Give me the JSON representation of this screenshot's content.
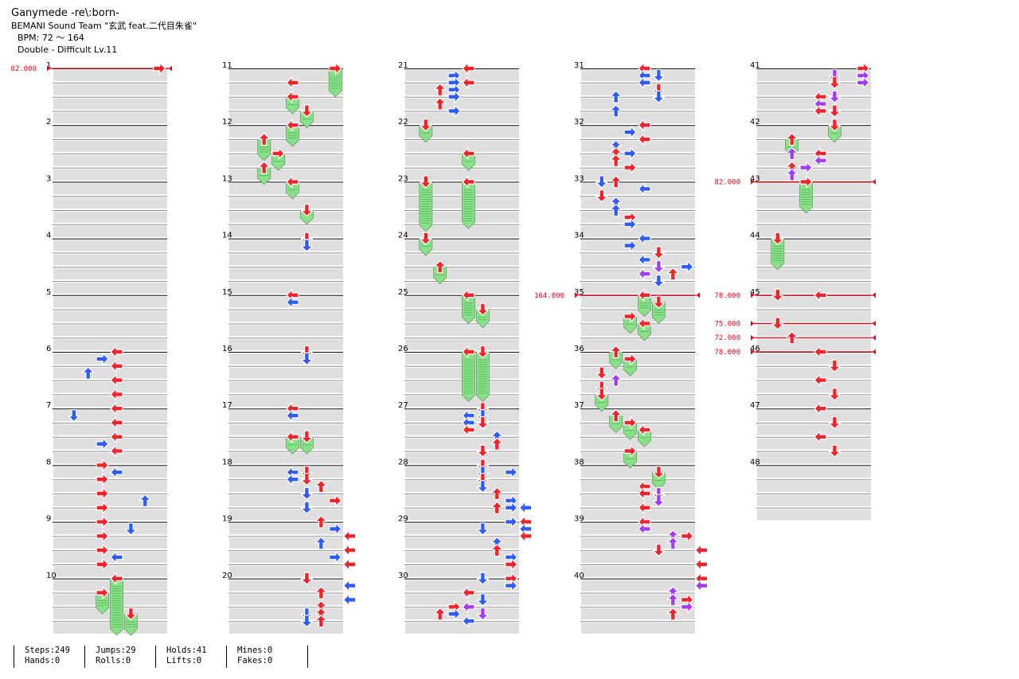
{
  "header": {
    "song_title": "Ganymede -re\\:born-",
    "artist": "BEMANI Sound Team \"玄武 feat.二代目朱雀\"",
    "bpm": "BPM: 72 ～ 164",
    "difficulty": "Double - Difficult  Lv.11"
  },
  "stats": [
    [
      "Steps:249",
      "Hands:0"
    ],
    [
      "Jumps:29",
      "Rolls:0"
    ],
    [
      "Holds:41",
      "Lifts:0"
    ],
    [
      "Mines:0",
      "Fakes:0"
    ]
  ],
  "colors": {
    "red_arrow": "#f0242c",
    "blue_arrow": "#2f5cf5",
    "purple_arrow": "#a13cf0",
    "hold_body": "#88e088",
    "bpm_line": "#e8001a",
    "row_band": "#dedede"
  },
  "measures": [
    "1",
    "2",
    "3",
    "4",
    "5",
    "6",
    "7",
    "8",
    "9",
    "10",
    "11",
    "12",
    "13",
    "14",
    "15",
    "16",
    "17",
    "18",
    "19",
    "20",
    "21",
    "22",
    "23",
    "24",
    "25",
    "26",
    "27",
    "28",
    "29",
    "30",
    "31",
    "32",
    "33",
    "34",
    "35",
    "36",
    "37",
    "38",
    "39",
    "40",
    "41",
    "42",
    "43",
    "44",
    "45",
    "46",
    "47",
    "48"
  ],
  "bpm_changes": [
    {
      "measure": 1,
      "beat": 0,
      "label": "82.000"
    },
    {
      "measure": 35,
      "beat": 0,
      "label": "164.000"
    },
    {
      "measure": 43,
      "beat": 0,
      "label": "82.000"
    },
    {
      "measure": 45,
      "beat": 0,
      "label": "78.000"
    },
    {
      "measure": 45,
      "beat": 2,
      "label": "75.000"
    },
    {
      "measure": 45,
      "beat": 3,
      "label": "72.000"
    },
    {
      "measure": 46,
      "beat": 0,
      "label": "78.000"
    }
  ],
  "notes": [
    {
      "m": 1,
      "b": 0,
      "lane": 7,
      "c": "r"
    },
    {
      "m": 6,
      "b": 0,
      "lane": 4,
      "c": "r"
    },
    {
      "m": 6,
      "b": 0.5,
      "lane": 3,
      "c": "b"
    },
    {
      "m": 6,
      "b": 1,
      "lane": 4,
      "c": "r"
    },
    {
      "m": 6,
      "b": 1.5,
      "lane": 2,
      "c": "b"
    },
    {
      "m": 6,
      "b": 2,
      "lane": 4,
      "c": "r"
    },
    {
      "m": 6,
      "b": 3,
      "lane": 4,
      "c": "r"
    },
    {
      "m": 7,
      "b": 0,
      "lane": 4,
      "c": "r"
    },
    {
      "m": 7,
      "b": 0.5,
      "lane": 1,
      "c": "b"
    },
    {
      "m": 7,
      "b": 1,
      "lane": 4,
      "c": "r"
    },
    {
      "m": 7,
      "b": 2,
      "lane": 4,
      "c": "r"
    },
    {
      "m": 7,
      "b": 2.5,
      "lane": 3,
      "c": "b"
    },
    {
      "m": 7,
      "b": 3,
      "lane": 4,
      "c": "r"
    },
    {
      "m": 8,
      "b": 0,
      "lane": 3,
      "c": "r"
    },
    {
      "m": 8,
      "b": 0.5,
      "lane": 4,
      "c": "b"
    },
    {
      "m": 8,
      "b": 1,
      "lane": 3,
      "c": "r"
    },
    {
      "m": 8,
      "b": 2,
      "lane": 3,
      "c": "r"
    },
    {
      "m": 8,
      "b": 2.5,
      "lane": 6,
      "c": "b"
    },
    {
      "m": 8,
      "b": 3,
      "lane": 3,
      "c": "r"
    },
    {
      "m": 9,
      "b": 0,
      "lane": 3,
      "c": "r"
    },
    {
      "m": 9,
      "b": 0.5,
      "lane": 5,
      "c": "b"
    },
    {
      "m": 9,
      "b": 1,
      "lane": 3,
      "c": "r"
    },
    {
      "m": 9,
      "b": 2,
      "lane": 3,
      "c": "r"
    },
    {
      "m": 9,
      "b": 2.5,
      "lane": 4,
      "c": "b"
    },
    {
      "m": 9,
      "b": 3,
      "lane": 3,
      "c": "r"
    },
    {
      "m": 10,
      "b": 0,
      "lane": 4,
      "c": "r",
      "hold": 4
    },
    {
      "m": 10,
      "b": 1,
      "lane": 3,
      "c": "r",
      "hold": 1.5
    },
    {
      "m": 10,
      "b": 2.5,
      "lane": 5,
      "c": "r",
      "hold": 1.5
    },
    {
      "m": 11,
      "b": 0,
      "lane": 7,
      "c": "r",
      "hold": 2
    },
    {
      "m": 11,
      "b": 1,
      "lane": 4,
      "c": "r"
    },
    {
      "m": 11,
      "b": 2,
      "lane": 4,
      "c": "r",
      "hold": 1.2
    },
    {
      "m": 11,
      "b": 3,
      "lane": 5,
      "c": "r",
      "hold": 1.2
    },
    {
      "m": 12,
      "b": 0,
      "lane": 4,
      "c": "r",
      "hold": 1.5
    },
    {
      "m": 12,
      "b": 1,
      "lane": 2,
      "c": "r",
      "hold": 1.5
    },
    {
      "m": 12,
      "b": 2,
      "lane": 3,
      "c": "r",
      "hold": 1.2
    },
    {
      "m": 12,
      "b": 3,
      "lane": 2,
      "c": "r",
      "hold": 1.2
    },
    {
      "m": 13,
      "b": 0,
      "lane": 4,
      "c": "r",
      "hold": 1.2
    },
    {
      "m": 13,
      "b": 2,
      "lane": 5,
      "c": "r",
      "hold": 1
    },
    {
      "m": 14,
      "b": 0,
      "lane": 5,
      "c": "r"
    },
    {
      "m": 14,
      "b": 0.5,
      "lane": 5,
      "c": "b"
    },
    {
      "m": 15,
      "b": 0,
      "lane": 4,
      "c": "r"
    },
    {
      "m": 15,
      "b": 0.5,
      "lane": 4,
      "c": "b"
    },
    {
      "m": 16,
      "b": 0,
      "lane": 5,
      "c": "r"
    },
    {
      "m": 16,
      "b": 0.5,
      "lane": 5,
      "c": "b"
    },
    {
      "m": 17,
      "b": 0,
      "lane": 4,
      "c": "r"
    },
    {
      "m": 17,
      "b": 0.5,
      "lane": 4,
      "c": "b"
    },
    {
      "m": 17,
      "b": 2,
      "lane": 4,
      "c": "r",
      "hold": 1.2
    },
    {
      "m": 17,
      "b": 2,
      "lane": 5,
      "c": "r",
      "hold": 1.2
    },
    {
      "m": 18,
      "b": 0.5,
      "lane": 4,
      "c": "b"
    },
    {
      "m": 18,
      "b": 0.5,
      "lane": 5,
      "c": "r"
    },
    {
      "m": 18,
      "b": 1,
      "lane": 4,
      "c": "b"
    },
    {
      "m": 18,
      "b": 1,
      "lane": 5,
      "c": "r"
    },
    {
      "m": 18,
      "b": 1.5,
      "lane": 6,
      "c": "r"
    },
    {
      "m": 18,
      "b": 2,
      "lane": 5,
      "c": "b"
    },
    {
      "m": 18,
      "b": 2.5,
      "lane": 7,
      "c": "r"
    },
    {
      "m": 18,
      "b": 3,
      "lane": 5,
      "c": "b"
    },
    {
      "m": 19,
      "b": 0,
      "lane": 6,
      "c": "r"
    },
    {
      "m": 19,
      "b": 0.5,
      "lane": 7,
      "c": "b"
    },
    {
      "m": 19,
      "b": 1,
      "lane": 8,
      "c": "r"
    },
    {
      "m": 19,
      "b": 1.5,
      "lane": 6,
      "c": "b"
    },
    {
      "m": 19,
      "b": 2,
      "lane": 8,
      "c": "r"
    },
    {
      "m": 19,
      "b": 2.5,
      "lane": 7,
      "c": "b"
    },
    {
      "m": 19,
      "b": 3,
      "lane": 8,
      "c": "r"
    },
    {
      "m": 20,
      "b": 0,
      "lane": 5,
      "c": "r"
    },
    {
      "m": 20,
      "b": 0.5,
      "lane": 8,
      "c": "b"
    },
    {
      "m": 20,
      "b": 1,
      "lane": 6,
      "c": "r"
    },
    {
      "m": 20,
      "b": 1.5,
      "lane": 8,
      "c": "b"
    },
    {
      "m": 20,
      "b": 2,
      "lane": 6,
      "c": "r"
    },
    {
      "m": 20,
      "b": 2.5,
      "lane": 5,
      "c": "b"
    },
    {
      "m": 20,
      "b": 2.5,
      "lane": 6,
      "c": "r"
    },
    {
      "m": 20,
      "b": 3,
      "lane": 5,
      "c": "b"
    },
    {
      "m": 20,
      "b": 3,
      "lane": 6,
      "c": "r"
    },
    {
      "m": 21,
      "b": 0,
      "lane": 4,
      "c": "r"
    },
    {
      "m": 21,
      "b": 0.5,
      "lane": 3,
      "c": "b"
    },
    {
      "m": 21,
      "b": 1,
      "lane": 4,
      "c": "r"
    },
    {
      "m": 21,
      "b": 1,
      "lane": 3,
      "c": "b"
    },
    {
      "m": 21,
      "b": 1.5,
      "lane": 2,
      "c": "r"
    },
    {
      "m": 21,
      "b": 1.5,
      "lane": 3,
      "c": "b"
    },
    {
      "m": 21,
      "b": 2,
      "lane": 3,
      "c": "b"
    },
    {
      "m": 21,
      "b": 2.5,
      "lane": 2,
      "c": "r"
    },
    {
      "m": 21,
      "b": 3,
      "lane": 3,
      "c": "b"
    },
    {
      "m": 22,
      "b": 0,
      "lane": 1,
      "c": "r",
      "hold": 1.2
    },
    {
      "m": 22,
      "b": 2,
      "lane": 4,
      "c": "r",
      "hold": 1.2
    },
    {
      "m": 23,
      "b": 0,
      "lane": 1,
      "c": "r",
      "hold": 3.5
    },
    {
      "m": 23,
      "b": 0,
      "lane": 4,
      "c": "r",
      "hold": 3.3
    },
    {
      "m": 24,
      "b": 0,
      "lane": 1,
      "c": "r",
      "hold": 1.2
    },
    {
      "m": 24,
      "b": 2,
      "lane": 2,
      "c": "r",
      "hold": 1.2
    },
    {
      "m": 25,
      "b": 0,
      "lane": 4,
      "c": "r",
      "hold": 2
    },
    {
      "m": 25,
      "b": 1,
      "lane": 5,
      "c": "r",
      "hold": 1.3
    },
    {
      "m": 26,
      "b": 0,
      "lane": 4,
      "c": "r",
      "hold": 3.5
    },
    {
      "m": 26,
      "b": 0,
      "lane": 5,
      "c": "r",
      "hold": 3.5
    },
    {
      "m": 27,
      "b": 0,
      "lane": 5,
      "c": "r"
    },
    {
      "m": 27,
      "b": 0.5,
      "lane": 4,
      "c": "b"
    },
    {
      "m": 27,
      "b": 0.5,
      "lane": 5,
      "c": "b"
    },
    {
      "m": 27,
      "b": 1,
      "lane": 4,
      "c": "b"
    },
    {
      "m": 27,
      "b": 1,
      "lane": 5,
      "c": "r"
    },
    {
      "m": 27,
      "b": 1.5,
      "lane": 4,
      "c": "r"
    },
    {
      "m": 27,
      "b": 2,
      "lane": 6,
      "c": "b"
    },
    {
      "m": 27,
      "b": 2.5,
      "lane": 6,
      "c": "r"
    },
    {
      "m": 27,
      "b": 3,
      "lane": 5,
      "c": "r"
    },
    {
      "m": 28,
      "b": 0,
      "lane": 5,
      "c": "r"
    },
    {
      "m": 28,
      "b": 0.5,
      "lane": 5,
      "c": "b"
    },
    {
      "m": 28,
      "b": 0.5,
      "lane": 7,
      "c": "b"
    },
    {
      "m": 28,
      "b": 1,
      "lane": 5,
      "c": "r"
    },
    {
      "m": 28,
      "b": 1.5,
      "lane": 5,
      "c": "b"
    },
    {
      "m": 28,
      "b": 2,
      "lane": 6,
      "c": "r"
    },
    {
      "m": 28,
      "b": 2.5,
      "lane": 7,
      "c": "b"
    },
    {
      "m": 28,
      "b": 3,
      "lane": 6,
      "c": "r"
    },
    {
      "m": 28,
      "b": 3,
      "lane": 7,
      "c": "b"
    },
    {
      "m": 28,
      "b": 3,
      "lane": 8,
      "c": "b"
    },
    {
      "m": 29,
      "b": 0,
      "lane": 7,
      "c": "b"
    },
    {
      "m": 29,
      "b": 0,
      "lane": 8,
      "c": "r"
    },
    {
      "m": 29,
      "b": 0.5,
      "lane": 5,
      "c": "b"
    },
    {
      "m": 29,
      "b": 0.5,
      "lane": 8,
      "c": "b"
    },
    {
      "m": 29,
      "b": 1,
      "lane": 8,
      "c": "r"
    },
    {
      "m": 29,
      "b": 1.5,
      "lane": 6,
      "c": "b"
    },
    {
      "m": 29,
      "b": 2,
      "lane": 6,
      "c": "r"
    },
    {
      "m": 29,
      "b": 2.5,
      "lane": 7,
      "c": "b"
    },
    {
      "m": 29,
      "b": 3,
      "lane": 7,
      "c": "r"
    },
    {
      "m": 30,
      "b": 0,
      "lane": 5,
      "c": "b"
    },
    {
      "m": 30,
      "b": 0,
      "lane": 7,
      "c": "r"
    },
    {
      "m": 30,
      "b": 0.5,
      "lane": 7,
      "c": "b"
    },
    {
      "m": 30,
      "b": 1,
      "lane": 4,
      "c": "r"
    },
    {
      "m": 30,
      "b": 1.5,
      "lane": 5,
      "c": "b"
    },
    {
      "m": 30,
      "b": 2,
      "lane": 3,
      "c": "r"
    },
    {
      "m": 30,
      "b": 2,
      "lane": 4,
      "c": "p"
    },
    {
      "m": 30,
      "b": 2.5,
      "lane": 2,
      "c": "r"
    },
    {
      "m": 30,
      "b": 2.5,
      "lane": 3,
      "c": "b"
    },
    {
      "m": 30,
      "b": 2.5,
      "lane": 5,
      "c": "p"
    },
    {
      "m": 30,
      "b": 3,
      "lane": 4,
      "c": "b"
    },
    {
      "m": 31,
      "b": 0,
      "lane": 4,
      "c": "r"
    },
    {
      "m": 31,
      "b": 0.5,
      "lane": 4,
      "c": "b"
    },
    {
      "m": 31,
      "b": 0.5,
      "lane": 5,
      "c": "b"
    },
    {
      "m": 31,
      "b": 1,
      "lane": 4,
      "c": "b"
    },
    {
      "m": 31,
      "b": 1.5,
      "lane": 5,
      "c": "r"
    },
    {
      "m": 31,
      "b": 2,
      "lane": 2,
      "c": "b"
    },
    {
      "m": 31,
      "b": 2,
      "lane": 5,
      "c": "b"
    },
    {
      "m": 31,
      "b": 3,
      "lane": 2,
      "c": "b"
    },
    {
      "m": 32,
      "b": 0,
      "lane": 4,
      "c": "r"
    },
    {
      "m": 32,
      "b": 0.5,
      "lane": 3,
      "c": "b"
    },
    {
      "m": 32,
      "b": 1,
      "lane": 4,
      "c": "r"
    },
    {
      "m": 32,
      "b": 1.5,
      "lane": 2,
      "c": "b"
    },
    {
      "m": 32,
      "b": 2,
      "lane": 2,
      "c": "r"
    },
    {
      "m": 32,
      "b": 2,
      "lane": 3,
      "c": "b"
    },
    {
      "m": 32,
      "b": 2.5,
      "lane": 2,
      "c": "r"
    },
    {
      "m": 32,
      "b": 3,
      "lane": 3,
      "c": "r"
    },
    {
      "m": 33,
      "b": 0,
      "lane": 1,
      "c": "b"
    },
    {
      "m": 33,
      "b": 0,
      "lane": 2,
      "c": "r"
    },
    {
      "m": 33,
      "b": 0.5,
      "lane": 4,
      "c": "b"
    },
    {
      "m": 33,
      "b": 1,
      "lane": 1,
      "c": "r"
    },
    {
      "m": 33,
      "b": 1.5,
      "lane": 2,
      "c": "b"
    },
    {
      "m": 33,
      "b": 2,
      "lane": 2,
      "c": "b"
    },
    {
      "m": 33,
      "b": 2.5,
      "lane": 3,
      "c": "r"
    },
    {
      "m": 33,
      "b": 3,
      "lane": 3,
      "c": "b"
    },
    {
      "m": 34,
      "b": 0,
      "lane": 4,
      "c": "b"
    },
    {
      "m": 34,
      "b": 0.5,
      "lane": 3,
      "c": "b"
    },
    {
      "m": 34,
      "b": 1,
      "lane": 5,
      "c": "r"
    },
    {
      "m": 34,
      "b": 1.5,
      "lane": 4,
      "c": "b"
    },
    {
      "m": 34,
      "b": 2,
      "lane": 7,
      "c": "b"
    },
    {
      "m": 34,
      "b": 2,
      "lane": 5,
      "c": "p"
    },
    {
      "m": 34,
      "b": 2.5,
      "lane": 4,
      "c": "p"
    },
    {
      "m": 34,
      "b": 2.5,
      "lane": 6,
      "c": "r"
    },
    {
      "m": 34,
      "b": 3,
      "lane": 5,
      "c": "b"
    },
    {
      "m": 35,
      "b": 0,
      "lane": 4,
      "c": "r",
      "hold": 1.5
    },
    {
      "m": 35,
      "b": 0.5,
      "lane": 5,
      "c": "r",
      "hold": 1.5
    },
    {
      "m": 35,
      "b": 1.5,
      "lane": 3,
      "c": "r",
      "hold": 1.2
    },
    {
      "m": 35,
      "b": 2,
      "lane": 4,
      "c": "r",
      "hold": 1.2
    },
    {
      "m": 36,
      "b": 0,
      "lane": 2,
      "c": "r",
      "hold": 1.2
    },
    {
      "m": 36,
      "b": 0.5,
      "lane": 3,
      "c": "r",
      "hold": 1.2
    },
    {
      "m": 36,
      "b": 1.5,
      "lane": 1,
      "c": "r"
    },
    {
      "m": 36,
      "b": 2,
      "lane": 2,
      "c": "p"
    },
    {
      "m": 36,
      "b": 2.5,
      "lane": 1,
      "c": "r"
    },
    {
      "m": 36,
      "b": 3,
      "lane": 1,
      "c": "r",
      "hold": 1.2
    },
    {
      "m": 37,
      "b": 0.5,
      "lane": 2,
      "c": "r",
      "hold": 1.2
    },
    {
      "m": 37,
      "b": 1,
      "lane": 3,
      "c": "r",
      "hold": 1.2
    },
    {
      "m": 37,
      "b": 1.5,
      "lane": 4,
      "c": "r",
      "hold": 1.2
    },
    {
      "m": 37,
      "b": 3,
      "lane": 3,
      "c": "r",
      "hold": 1.2
    },
    {
      "m": 38,
      "b": 0.5,
      "lane": 5,
      "c": "r",
      "hold": 1.2
    },
    {
      "m": 38,
      "b": 1.5,
      "lane": 4,
      "c": "r"
    },
    {
      "m": 38,
      "b": 2,
      "lane": 4,
      "c": "r"
    },
    {
      "m": 38,
      "b": 2,
      "lane": 5,
      "c": "p"
    },
    {
      "m": 38,
      "b": 2.5,
      "lane": 5,
      "c": "p"
    },
    {
      "m": 38,
      "b": 3,
      "lane": 4,
      "c": "r"
    },
    {
      "m": 39,
      "b": 0,
      "lane": 4,
      "c": "r"
    },
    {
      "m": 39,
      "b": 0.5,
      "lane": 4,
      "c": "p"
    },
    {
      "m": 39,
      "b": 1,
      "lane": 6,
      "c": "p"
    },
    {
      "m": 39,
      "b": 1,
      "lane": 7,
      "c": "r"
    },
    {
      "m": 39,
      "b": 1.5,
      "lane": 6,
      "c": "p"
    },
    {
      "m": 39,
      "b": 2,
      "lane": 5,
      "c": "r"
    },
    {
      "m": 39,
      "b": 2,
      "lane": 8,
      "c": "r"
    },
    {
      "m": 39,
      "b": 3,
      "lane": 8,
      "c": "r"
    },
    {
      "m": 40,
      "b": 0,
      "lane": 8,
      "c": "r"
    },
    {
      "m": 40,
      "b": 0.5,
      "lane": 8,
      "c": "p"
    },
    {
      "m": 40,
      "b": 1,
      "lane": 6,
      "c": "r"
    },
    {
      "m": 40,
      "b": 1,
      "lane": 6,
      "c": "p"
    },
    {
      "m": 40,
      "b": 1.5,
      "lane": 6,
      "c": "p"
    },
    {
      "m": 40,
      "b": 1.5,
      "lane": 7,
      "c": "r"
    },
    {
      "m": 40,
      "b": 2,
      "lane": 7,
      "c": "p"
    },
    {
      "m": 40,
      "b": 2.5,
      "lane": 6,
      "c": "r"
    },
    {
      "m": 41,
      "b": 0,
      "lane": 7,
      "c": "r"
    },
    {
      "m": 41,
      "b": 0.5,
      "lane": 5,
      "c": "p"
    },
    {
      "m": 41,
      "b": 0.5,
      "lane": 7,
      "c": "p"
    },
    {
      "m": 41,
      "b": 1,
      "lane": 5,
      "c": "r"
    },
    {
      "m": 41,
      "b": 1,
      "lane": 7,
      "c": "p"
    },
    {
      "m": 41,
      "b": 2,
      "lane": 4,
      "c": "r"
    },
    {
      "m": 41,
      "b": 2,
      "lane": 5,
      "c": "p"
    },
    {
      "m": 41,
      "b": 2.5,
      "lane": 4,
      "c": "p"
    },
    {
      "m": 41,
      "b": 3,
      "lane": 4,
      "c": "r"
    },
    {
      "m": 41,
      "b": 3,
      "lane": 5,
      "c": "r"
    },
    {
      "m": 42,
      "b": 0,
      "lane": 5,
      "c": "r",
      "hold": 1.2
    },
    {
      "m": 42,
      "b": 1,
      "lane": 2,
      "c": "r",
      "hold": 1.2
    },
    {
      "m": 42,
      "b": 2,
      "lane": 4,
      "c": "r"
    },
    {
      "m": 42,
      "b": 2,
      "lane": 2,
      "c": "p"
    },
    {
      "m": 42,
      "b": 2.5,
      "lane": 4,
      "c": "p"
    },
    {
      "m": 42,
      "b": 3,
      "lane": 2,
      "c": "r"
    },
    {
      "m": 42,
      "b": 3,
      "lane": 3,
      "c": "p"
    },
    {
      "m": 42,
      "b": 3.5,
      "lane": 2,
      "c": "p"
    },
    {
      "m": 43,
      "b": 0,
      "lane": 3,
      "c": "r",
      "hold": 2.2
    },
    {
      "m": 44,
      "b": 0,
      "lane": 1,
      "c": "r",
      "hold": 2.2
    },
    {
      "m": 45,
      "b": 0,
      "lane": 1,
      "c": "r"
    },
    {
      "m": 45,
      "b": 0,
      "lane": 4,
      "c": "r"
    },
    {
      "m": 45,
      "b": 2,
      "lane": 1,
      "c": "r"
    },
    {
      "m": 45,
      "b": 3,
      "lane": 2,
      "c": "r"
    },
    {
      "m": 46,
      "b": 0,
      "lane": 4,
      "c": "r"
    },
    {
      "m": 46,
      "b": 1,
      "lane": 5,
      "c": "r"
    },
    {
      "m": 46,
      "b": 2,
      "lane": 4,
      "c": "r"
    },
    {
      "m": 46,
      "b": 3,
      "lane": 5,
      "c": "r"
    },
    {
      "m": 47,
      "b": 0,
      "lane": 4,
      "c": "r"
    },
    {
      "m": 47,
      "b": 1,
      "lane": 5,
      "c": "r"
    },
    {
      "m": 47,
      "b": 2,
      "lane": 4,
      "c": "r"
    },
    {
      "m": 47,
      "b": 3,
      "lane": 5,
      "c": "r"
    }
  ]
}
